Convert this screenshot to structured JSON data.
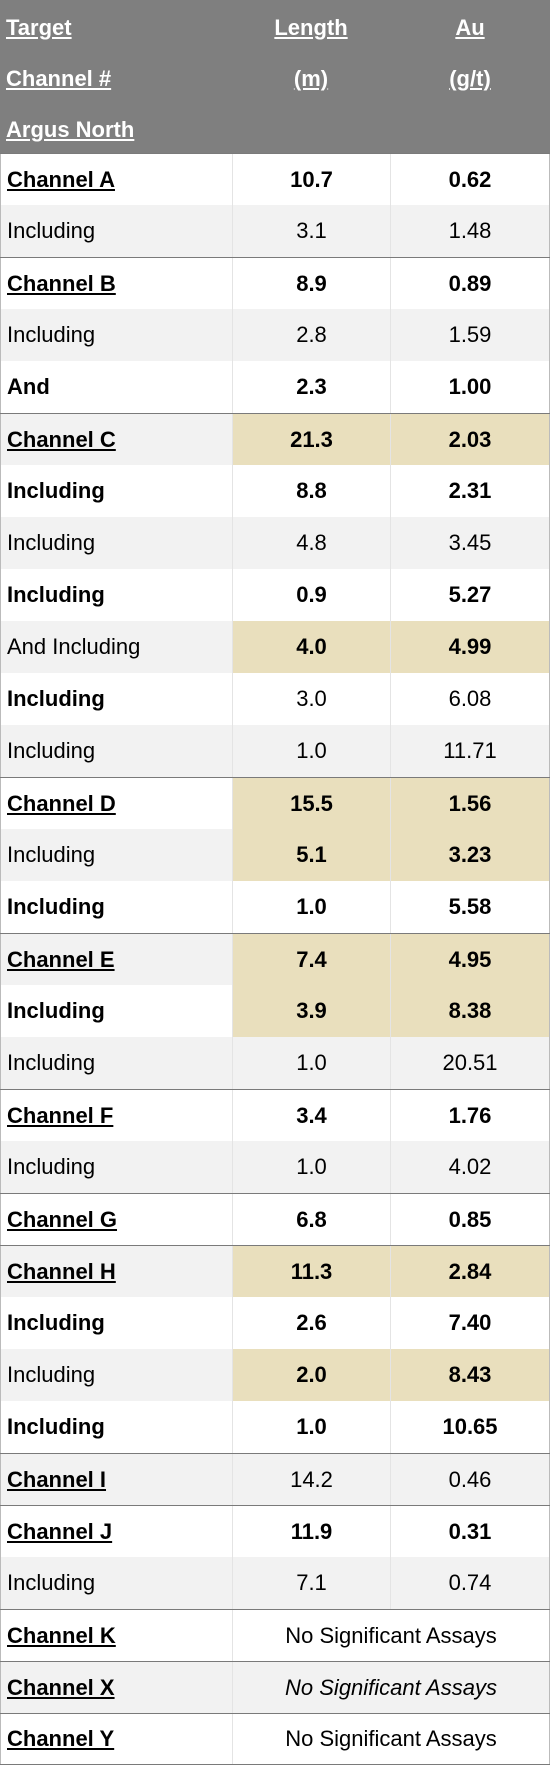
{
  "header": {
    "target": [
      "Target",
      "Channel #",
      "Argus North"
    ],
    "length": [
      "Length",
      "(m)"
    ],
    "au": [
      "Au",
      "(g/t)"
    ]
  },
  "rows": [
    [
      "Channel A",
      "10.7",
      "0.62"
    ],
    [
      "Including",
      "3.1",
      "1.48"
    ],
    [
      "Channel B",
      "8.9",
      "0.89"
    ],
    [
      "Including",
      "2.8",
      "1.59"
    ],
    [
      "And",
      "2.3",
      "1.00"
    ],
    [
      "Channel C",
      "21.3",
      "2.03"
    ],
    [
      "Including",
      "8.8",
      "2.31"
    ],
    [
      "Including",
      "4.8",
      "3.45"
    ],
    [
      "Including",
      "0.9",
      "5.27"
    ],
    [
      "And Including",
      "4.0",
      "4.99"
    ],
    [
      "Including",
      "3.0",
      "6.08"
    ],
    [
      "Including",
      "1.0",
      "11.71"
    ],
    [
      "Channel D",
      "15.5",
      "1.56"
    ],
    [
      "Including",
      "5.1",
      "3.23"
    ],
    [
      "Including",
      "1.0",
      "5.58"
    ],
    [
      "Channel E",
      "7.4",
      "4.95"
    ],
    [
      "Including",
      "3.9",
      "8.38"
    ],
    [
      "Including",
      "1.0",
      "20.51"
    ],
    [
      "Channel F",
      "3.4",
      "1.76"
    ],
    [
      "Including",
      "1.0",
      "4.02"
    ],
    [
      "Channel G",
      "6.8",
      "0.85"
    ],
    [
      "Channel H",
      "11.3",
      "2.84"
    ],
    [
      "Including",
      "2.6",
      "7.40"
    ],
    [
      "Including",
      "2.0",
      "8.43"
    ],
    [
      "Including",
      "1.0",
      "10.65"
    ],
    [
      "Channel I",
      "14.2",
      "0.46"
    ],
    [
      "Channel J",
      "11.9",
      "0.31"
    ],
    [
      "Including",
      "7.1",
      "0.74"
    ],
    [
      "Channel K",
      "No Significant Assays"
    ],
    [
      "Channel X",
      "No Significant Assays"
    ],
    [
      "Channel Y",
      "No Significant Assays"
    ]
  ]
}
